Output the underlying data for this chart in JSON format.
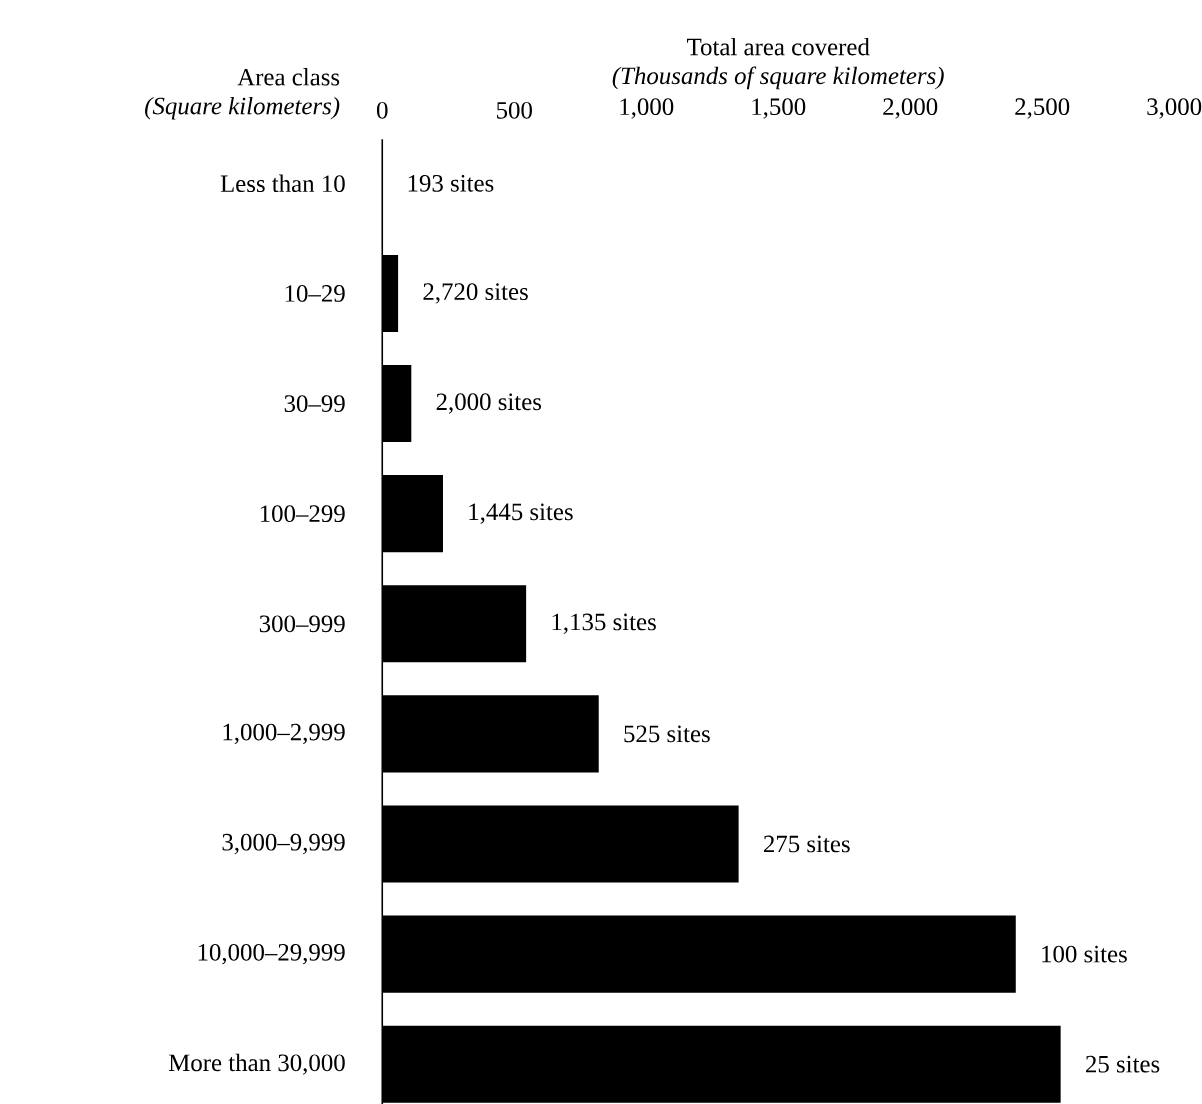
{
  "chart_data": {
    "type": "bar",
    "orientation": "horizontal",
    "xlabel": "Total area covered *(Thousands of square kilometers)*",
    "ylabel": "Area class *(Square kilometers)*",
    "categories": [
      "Less than 10",
      "10–29",
      "30–99",
      "100–299",
      "300–999",
      "1,000–2,999",
      "3,000–9,999",
      "10,000–29,999",
      "More than 30,000"
    ],
    "values": [
      0,
      60,
      110,
      230,
      545,
      820,
      1350,
      2400,
      2570
    ],
    "annotations": [
      "193 sites",
      "2,720 sites",
      "2,000 sites",
      "1,445 sites",
      "1,135 sites",
      "525 sites",
      "275 sites",
      "100 sites",
      "25 sites"
    ],
    "color": "#000000",
    "xlim": [
      0,
      3000
    ],
    "xticks": [
      {
        "value": 0,
        "label": "0"
      },
      {
        "value": 500,
        "label": "500"
      },
      {
        "value": 1000,
        "label": "1,000"
      },
      {
        "value": 1500,
        "label": "1,500"
      },
      {
        "value": 2000,
        "label": "2,000"
      },
      {
        "value": 2500,
        "label": "2,500"
      },
      {
        "value": 3000,
        "label": "3,000"
      }
    ],
    "grid": false
  }
}
